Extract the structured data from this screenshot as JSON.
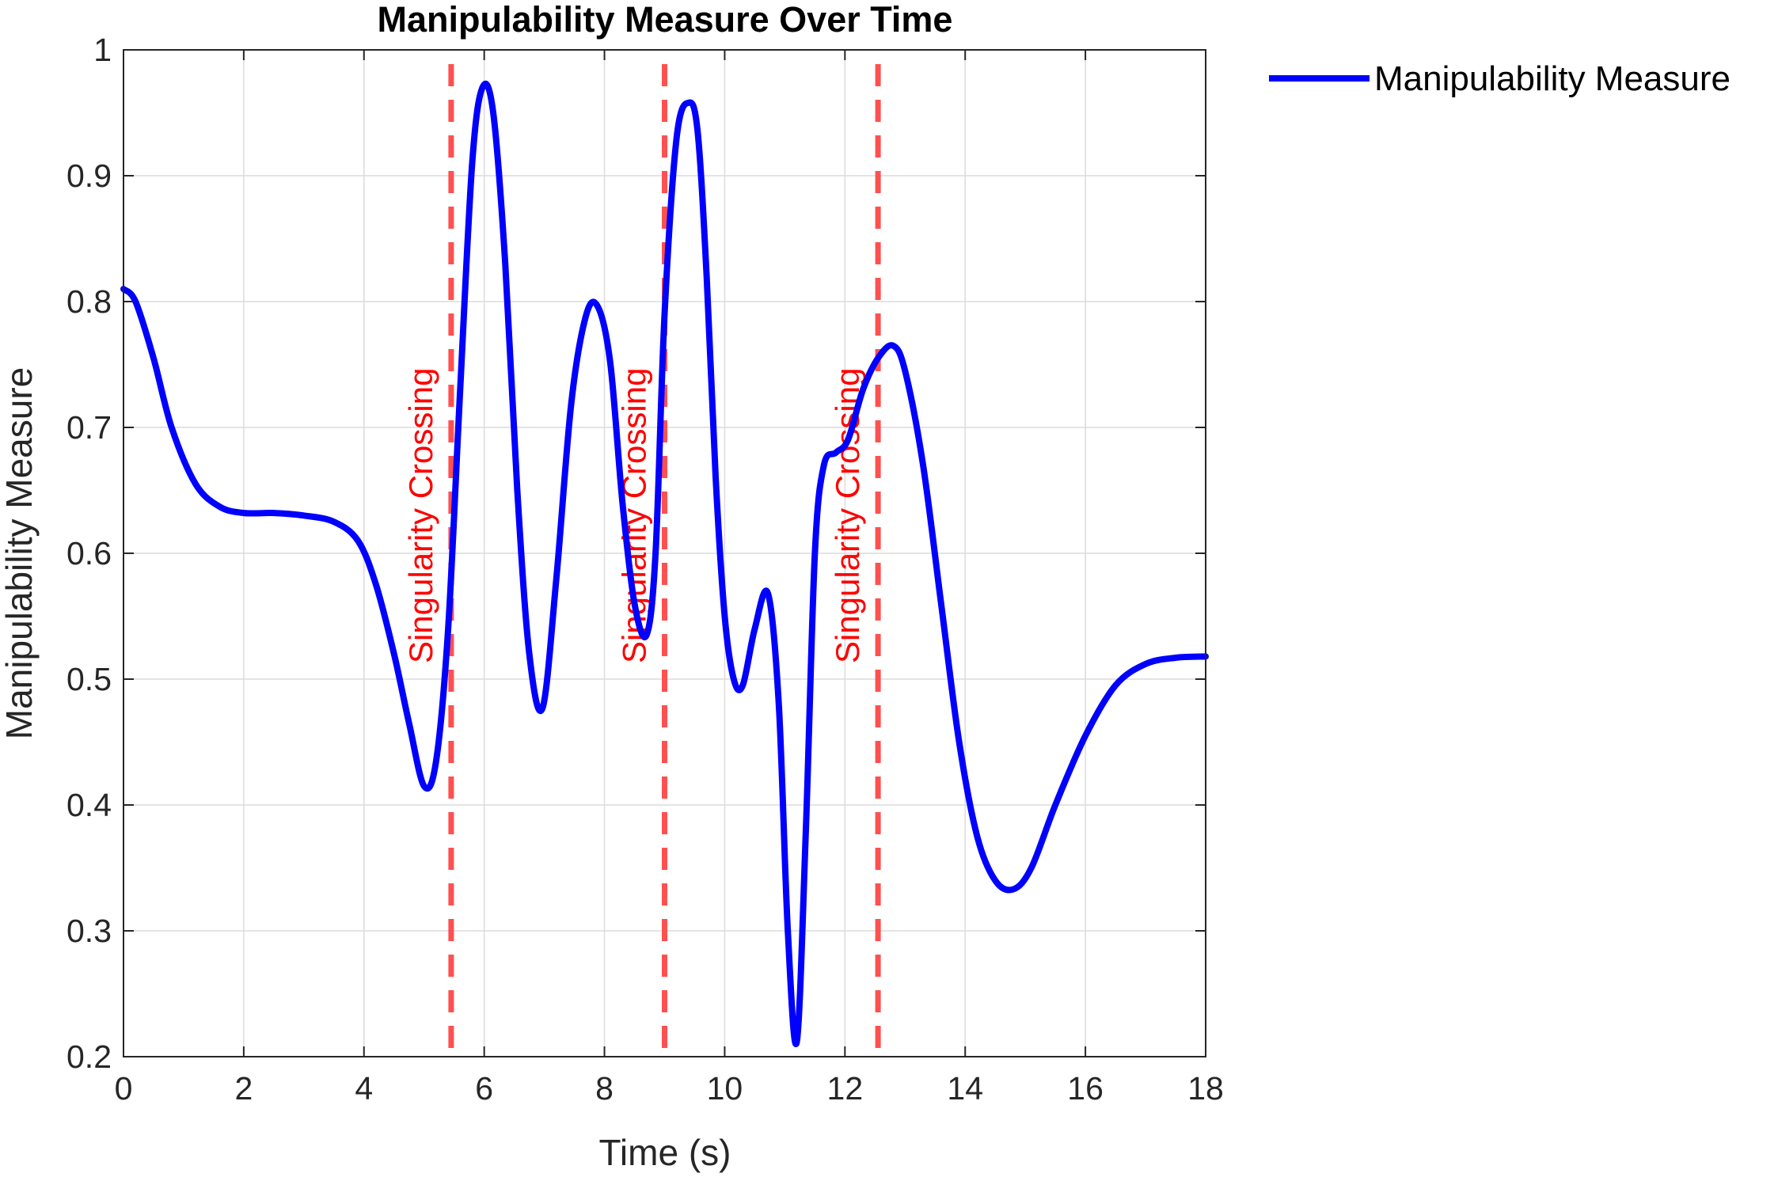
{
  "chart_data": {
    "type": "line",
    "title": "Manipulability Measure Over Time",
    "xlabel": "Time (s)",
    "ylabel": "Manipulability Measure",
    "xlim": [
      0,
      18
    ],
    "ylim": [
      0.2,
      1
    ],
    "xticks": [
      0,
      2,
      4,
      6,
      8,
      10,
      12,
      14,
      16,
      18
    ],
    "xtick_labels": [
      "0",
      "2",
      "4",
      "6",
      "8",
      "10",
      "12",
      "14",
      "16",
      "18"
    ],
    "yticks": [
      0.2,
      0.3,
      0.4,
      0.5,
      0.6,
      0.7,
      0.8,
      0.9,
      1
    ],
    "ytick_labels": [
      "0.2",
      "0.3",
      "0.4",
      "0.5",
      "0.6",
      "0.7",
      "0.8",
      "0.9",
      "1"
    ],
    "grid": true,
    "legend_position": "outside-top-right",
    "series": [
      {
        "name": "Manipulability Measure",
        "color": "#0000ff",
        "x": [
          0,
          0.2,
          0.5,
          0.8,
          1.2,
          1.6,
          2.0,
          2.5,
          3.0,
          3.5,
          3.9,
          4.2,
          4.5,
          4.75,
          5.0,
          5.2,
          5.4,
          5.6,
          5.8,
          5.97,
          6.15,
          6.35,
          6.55,
          6.75,
          6.97,
          7.2,
          7.45,
          7.7,
          7.9,
          8.1,
          8.3,
          8.5,
          8.7,
          8.85,
          9.0,
          9.2,
          9.4,
          9.55,
          9.7,
          9.85,
          10.0,
          10.15,
          10.3,
          10.5,
          10.72,
          10.9,
          11.05,
          11.2,
          11.35,
          11.5,
          11.65,
          11.85,
          12.05,
          12.3,
          12.55,
          12.8,
          13.0,
          13.3,
          13.6,
          13.9,
          14.2,
          14.5,
          14.8,
          15.1,
          15.5,
          16.0,
          16.5,
          17.0,
          17.5,
          18.0
        ],
        "y": [
          0.81,
          0.8,
          0.755,
          0.7,
          0.655,
          0.637,
          0.632,
          0.632,
          0.63,
          0.625,
          0.61,
          0.575,
          0.52,
          0.465,
          0.415,
          0.435,
          0.54,
          0.73,
          0.91,
          0.97,
          0.95,
          0.83,
          0.65,
          0.52,
          0.477,
          0.58,
          0.72,
          0.79,
          0.795,
          0.75,
          0.64,
          0.56,
          0.535,
          0.6,
          0.79,
          0.93,
          0.958,
          0.935,
          0.82,
          0.66,
          0.55,
          0.5,
          0.495,
          0.54,
          0.568,
          0.48,
          0.3,
          0.212,
          0.38,
          0.6,
          0.67,
          0.68,
          0.69,
          0.73,
          0.755,
          0.765,
          0.745,
          0.67,
          0.56,
          0.45,
          0.375,
          0.34,
          0.333,
          0.35,
          0.4,
          0.455,
          0.495,
          0.512,
          0.517,
          0.518
        ]
      }
    ],
    "vlines": [
      {
        "x": 5.45,
        "label": "Singularity Crossing",
        "color": "#ff5050"
      },
      {
        "x": 9.0,
        "label": "Singularity Crossing",
        "color": "#ff5050"
      },
      {
        "x": 12.55,
        "label": "Singularity Crossing",
        "color": "#ff5050"
      }
    ]
  }
}
